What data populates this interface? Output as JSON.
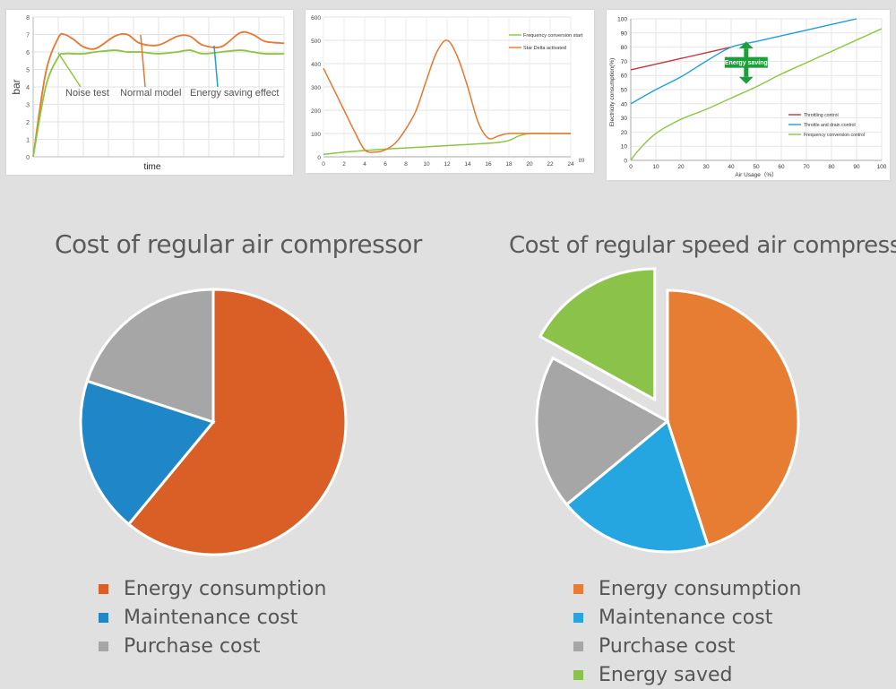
{
  "chart_data": [
    {
      "type": "line",
      "title": "",
      "xlabel": "time",
      "ylabel": "bar",
      "ylim": [
        0,
        8
      ],
      "yticks": [
        0,
        1,
        2,
        3,
        4,
        5,
        6,
        7,
        8
      ],
      "grid": true,
      "x": [
        0,
        0.4,
        0.8,
        1.0,
        1.3,
        1.6,
        2.0,
        2.6,
        3.0,
        3.4,
        4.0,
        4.6,
        5.0,
        5.4,
        6.0,
        6.6,
        7.0,
        7.4,
        8.0
      ],
      "series": [
        {
          "color": "#e8772f",
          "values": [
            0,
            4.8,
            6.8,
            7.0,
            6.7,
            6.3,
            6.2,
            6.9,
            7.0,
            6.5,
            6.4,
            6.9,
            6.9,
            6.4,
            6.3,
            7.1,
            7.0,
            6.6,
            6.5
          ]
        },
        {
          "color": "#8cc63f",
          "values": [
            0,
            4.0,
            5.7,
            5.9,
            5.9,
            5.9,
            6.0,
            6.1,
            6.0,
            6.0,
            5.9,
            6.0,
            6.1,
            5.9,
            6.0,
            6.1,
            6.0,
            5.9,
            5.9
          ]
        }
      ],
      "annotations": [
        {
          "text": "Noise test",
          "color": "#8cc63f"
        },
        {
          "text": "Normal model",
          "color": "#e8772f"
        },
        {
          "text": "Energy saving effect",
          "color": "#1fa0d8"
        }
      ]
    },
    {
      "type": "line",
      "title": "",
      "xlabel": "",
      "ylabel": "",
      "xlim": [
        0,
        24
      ],
      "ylim": [
        0,
        600
      ],
      "xticks": [
        0,
        2,
        4,
        6,
        8,
        10,
        12,
        14,
        16,
        18,
        20,
        22,
        24
      ],
      "yticks": [
        0,
        100,
        200,
        300,
        400,
        500,
        600
      ],
      "corner_label": "89",
      "grid": true,
      "legend_position": "top-right",
      "series": [
        {
          "name": "Frequency conversion start",
          "color": "#8cc63f",
          "x": [
            0,
            2,
            4,
            6,
            8,
            10,
            12,
            14,
            16,
            17,
            18,
            19,
            20,
            22,
            24
          ],
          "values": [
            10,
            20,
            27,
            33,
            38,
            43,
            48,
            53,
            58,
            62,
            70,
            90,
            100,
            100,
            100
          ]
        },
        {
          "name": "Star Delta activated",
          "color": "#e8772f",
          "x": [
            0,
            1,
            2,
            3,
            4,
            5,
            6,
            7,
            8,
            9,
            10,
            11,
            12,
            13,
            14,
            15,
            16,
            17,
            18,
            20,
            22,
            24
          ],
          "values": [
            380,
            290,
            200,
            110,
            30,
            20,
            30,
            60,
            120,
            200,
            330,
            450,
            500,
            430,
            300,
            150,
            80,
            90,
            100,
            100,
            100,
            100
          ]
        }
      ]
    },
    {
      "type": "line",
      "title": "",
      "xlabel": "Air Usage（%）",
      "ylabel": "Electricity consumption(%)",
      "xlim": [
        0,
        100
      ],
      "ylim": [
        0,
        100
      ],
      "xticks": [
        0,
        10,
        20,
        30,
        40,
        50,
        60,
        70,
        80,
        90,
        100
      ],
      "yticks": [
        0,
        10,
        20,
        30,
        40,
        50,
        60,
        70,
        80,
        90,
        100
      ],
      "grid": true,
      "legend_position": "bottom-right",
      "annotation": "Energy saving",
      "annotation_color": "#1e9e3a",
      "series": [
        {
          "name": "Throttling control",
          "color": "#c0393b",
          "x": [
            0,
            10,
            20,
            30,
            40
          ],
          "values": [
            64,
            68,
            72,
            76,
            80
          ]
        },
        {
          "name": "Throttle and drain control",
          "color": "#1fa0d8",
          "x": [
            0,
            10,
            20,
            30,
            40,
            50,
            60,
            70,
            80,
            90
          ],
          "values": [
            40,
            50,
            59,
            70,
            80,
            84,
            88,
            92,
            96,
            100
          ]
        },
        {
          "name": "Frequency conversion control",
          "color": "#8cc63f",
          "x": [
            0,
            3,
            10,
            20,
            30,
            40,
            50,
            60,
            70,
            80,
            90,
            100
          ],
          "values": [
            0,
            7,
            19,
            29,
            36,
            44,
            52,
            61,
            69,
            77,
            85,
            93
          ]
        }
      ]
    },
    {
      "type": "pie",
      "title": "Cost of regular air compressor",
      "series": [
        {
          "name": "Energy consumption",
          "value": 61,
          "color": "#d95f27"
        },
        {
          "name": "Maintenance cost",
          "value": 19,
          "color": "#1f87c8"
        },
        {
          "name": "Purchase cost",
          "value": 20,
          "color": "#a6a6a6"
        }
      ],
      "legend_position": "bottom"
    },
    {
      "type": "pie",
      "title": "Cost of regular speed air compressor",
      "series": [
        {
          "name": "Energy consumption",
          "value": 45,
          "color": "#e77c33"
        },
        {
          "name": "Maintenance cost",
          "value": 19,
          "color": "#25a6e0"
        },
        {
          "name": "Purchase cost",
          "value": 19,
          "color": "#a6a6a6"
        },
        {
          "name": "Energy saved",
          "value": 17,
          "color": "#8bc34a",
          "exploded": true
        }
      ],
      "legend_position": "bottom"
    }
  ]
}
